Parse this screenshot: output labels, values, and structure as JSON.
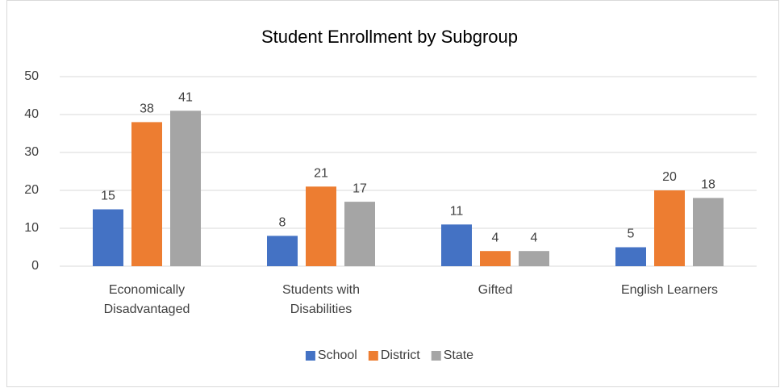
{
  "chart_data": {
    "type": "bar",
    "title": "Student Enrollment by Subgroup",
    "categories": [
      "Economically Disadvantaged",
      "Students with Disabilities",
      "Gifted",
      "English Learners"
    ],
    "series": [
      {
        "name": "School",
        "color": "#4472c4",
        "values": [
          15,
          8,
          11,
          5
        ]
      },
      {
        "name": "District",
        "color": "#ed7d31",
        "values": [
          38,
          21,
          4,
          20
        ]
      },
      {
        "name": "State",
        "color": "#a5a5a5",
        "values": [
          41,
          17,
          4,
          18
        ]
      }
    ],
    "ylim": [
      0,
      50
    ],
    "yticks": [
      0,
      10,
      20,
      30,
      40,
      50
    ],
    "grid": true,
    "legend": "bottom"
  }
}
